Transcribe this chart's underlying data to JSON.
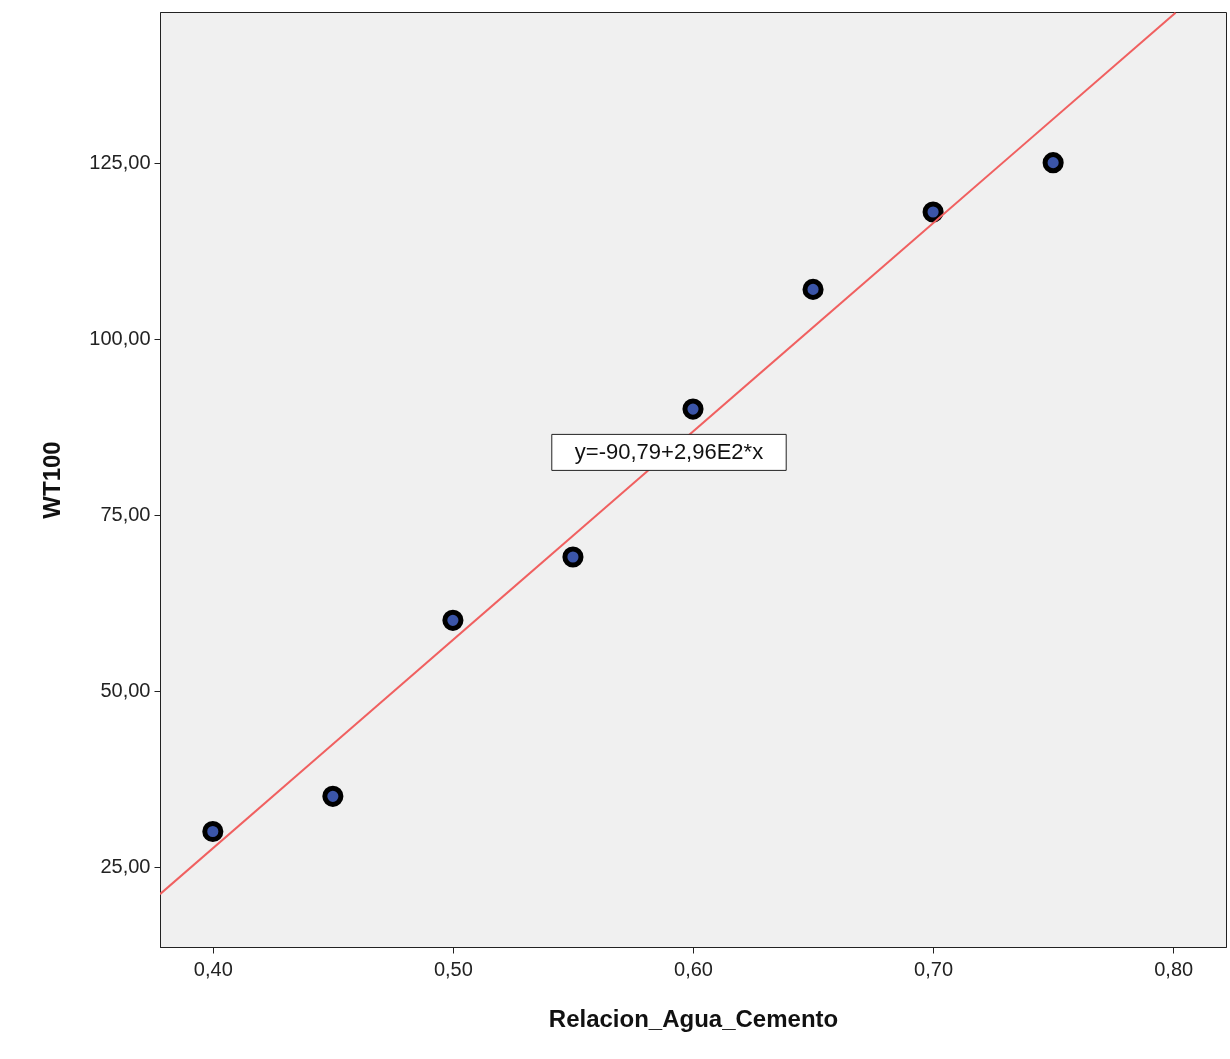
{
  "chart_data": {
    "type": "scatter",
    "xlabel": "Relacion_Agua_Cemento",
    "ylabel": "WT100",
    "x": [
      0.4,
      0.45,
      0.5,
      0.55,
      0.6,
      0.65,
      0.7,
      0.75
    ],
    "series": [
      {
        "type": "scatter",
        "color": "#3b55a8",
        "values": [
          30,
          35,
          60,
          69,
          90,
          107,
          118,
          125
        ]
      },
      {
        "type": "line",
        "marker": "none",
        "color": "#f06060",
        "x": [
          0.378,
          0.801
        ],
        "values": [
          21.1,
          146.3
        ]
      }
    ],
    "xlim": [
      0.378,
      0.822
    ],
    "ylim": [
      13.6,
      146.4
    ],
    "xticks": [
      {
        "value": 0.4,
        "label": "0,40"
      },
      {
        "value": 0.5,
        "label": "0,50"
      },
      {
        "value": 0.6,
        "label": "0,60"
      },
      {
        "value": 0.7,
        "label": "0,70"
      },
      {
        "value": 0.8,
        "label": "0,80"
      }
    ],
    "yticks": [
      {
        "value": 25,
        "label": "25,00"
      },
      {
        "value": 50,
        "label": "50,00"
      },
      {
        "value": 75,
        "label": "75,00"
      },
      {
        "value": 100,
        "label": "100,00"
      },
      {
        "value": 125,
        "label": "125,00"
      }
    ],
    "annotations": [
      {
        "text": "y=-90,79+2,96E2*x",
        "x": 0.59,
        "y": 83.85
      }
    ],
    "marker": "circle",
    "grid": false
  }
}
